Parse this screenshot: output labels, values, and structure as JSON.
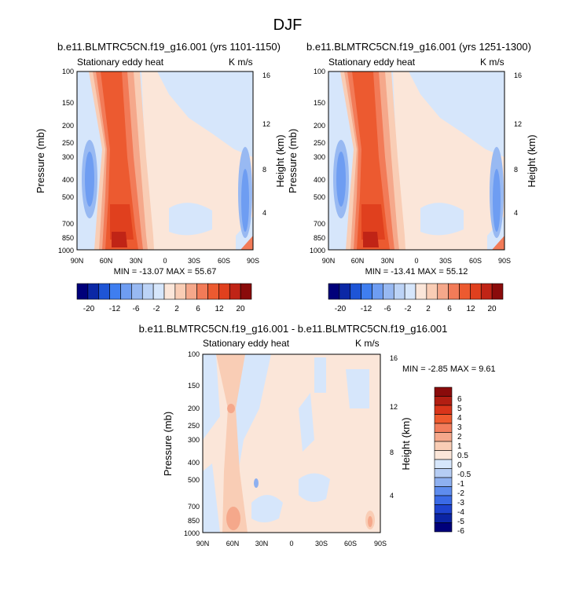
{
  "page_title": "DJF",
  "panel_top_left": {
    "title": "b.e11.BLMTRC5CN.f19_g16.001 (yrs 1101-1150)",
    "variable": "Stationary eddy heat",
    "units": "K m/s",
    "min_max": "MIN = -13.07   MAX =  55.67"
  },
  "panel_top_right": {
    "title": "b.e11.BLMTRC5CN.f19_g16.001 (yrs 1251-1300)",
    "variable": "Stationary eddy heat",
    "units": "K m/s",
    "min_max": "MIN = -13.41   MAX =  55.12"
  },
  "panel_bottom": {
    "title": "b.e11.BLMTRC5CN.f19_g16.001 - b.e11.BLMTRC5CN.f19_g16.001",
    "variable": "Stationary eddy heat",
    "units": "K m/s",
    "min_max": "MIN =  -2.85   MAX =  9.61"
  },
  "chart_data": [
    {
      "type": "heatmap",
      "subtype": "filled-contour latitude-pressure cross-section",
      "title": "b.e11.BLMTRC5CN.f19_g16.001 (yrs 1101-1150)",
      "variable": "Stationary eddy heat",
      "units": "K m/s",
      "x_ticks": [
        "90N",
        "60N",
        "30N",
        "0",
        "30S",
        "60S",
        "90S"
      ],
      "ylabel": "Pressure (mb)",
      "y_ticks": [
        "100",
        "150",
        "200",
        "250",
        "300",
        "400",
        "500",
        "700",
        "850",
        "1000"
      ],
      "y2label": "Height (km)",
      "y2_ticks": [
        "16",
        "12",
        "8",
        "4"
      ],
      "min": -13.07,
      "max": 55.67,
      "colorbar_labels": [
        "-20",
        "-12",
        "-6",
        "-2",
        "2",
        "6",
        "12",
        "20"
      ],
      "colorbar_levels": [
        -20,
        -16,
        -12,
        -8,
        -6,
        -4,
        -2,
        -1,
        1,
        2,
        4,
        6,
        8,
        12,
        16,
        20
      ]
    },
    {
      "type": "heatmap",
      "subtype": "filled-contour latitude-pressure cross-section",
      "title": "b.e11.BLMTRC5CN.f19_g16.001 (yrs 1251-1300)",
      "variable": "Stationary eddy heat",
      "units": "K m/s",
      "x_ticks": [
        "90N",
        "60N",
        "30N",
        "0",
        "30S",
        "60S",
        "90S"
      ],
      "ylabel": "Pressure (mb)",
      "y_ticks": [
        "100",
        "150",
        "200",
        "250",
        "300",
        "400",
        "500",
        "700",
        "850",
        "1000"
      ],
      "y2label": "Height (km)",
      "y2_ticks": [
        "16",
        "12",
        "8",
        "4"
      ],
      "min": -13.41,
      "max": 55.12,
      "colorbar_labels": [
        "-20",
        "-12",
        "-6",
        "-2",
        "2",
        "6",
        "12",
        "20"
      ],
      "colorbar_levels": [
        -20,
        -16,
        -12,
        -8,
        -6,
        -4,
        -2,
        -1,
        1,
        2,
        4,
        6,
        8,
        12,
        16,
        20
      ]
    },
    {
      "type": "heatmap",
      "subtype": "filled-contour latitude-pressure difference",
      "title": "b.e11.BLMTRC5CN.f19_g16.001 - b.e11.BLMTRC5CN.f19_g16.001",
      "variable": "Stationary eddy heat",
      "units": "K m/s",
      "x_ticks": [
        "90N",
        "60N",
        "30N",
        "0",
        "30S",
        "60S",
        "90S"
      ],
      "ylabel": "Pressure (mb)",
      "y_ticks": [
        "100",
        "150",
        "200",
        "250",
        "300",
        "400",
        "500",
        "700",
        "850",
        "1000"
      ],
      "y2label": "Height (km)",
      "y2_ticks": [
        "16",
        "12",
        "8",
        "4"
      ],
      "min": -2.85,
      "max": 9.61,
      "colorbar_labels": [
        "6",
        "5",
        "4",
        "3",
        "2",
        "1",
        "0.5",
        "0",
        "-0.5",
        "-1",
        "-2",
        "-3",
        "-4",
        "-5",
        "-6"
      ]
    }
  ],
  "colors": {
    "top_colorbar": [
      "#00007a",
      "#0b28a6",
      "#1e55d6",
      "#3f7ef0",
      "#6e9df2",
      "#98b9f2",
      "#bcd3f6",
      "#d6e6fb",
      "#fbe6d9",
      "#f9cdb5",
      "#f5a88b",
      "#f27b58",
      "#ec5a30",
      "#e0401e",
      "#c02416",
      "#8a0b0b"
    ],
    "bottom_colorbar": [
      "#8a0b0b",
      "#b21e12",
      "#d9351a",
      "#ef5a2e",
      "#f27d5c",
      "#f5a88b",
      "#f9cdb5",
      "#fbe6d9",
      "#d6e6fb",
      "#b6cdf4",
      "#8eb0f0",
      "#5e8cee",
      "#3a6ae6",
      "#1e43cf",
      "#0b24a4",
      "#00007a"
    ]
  }
}
